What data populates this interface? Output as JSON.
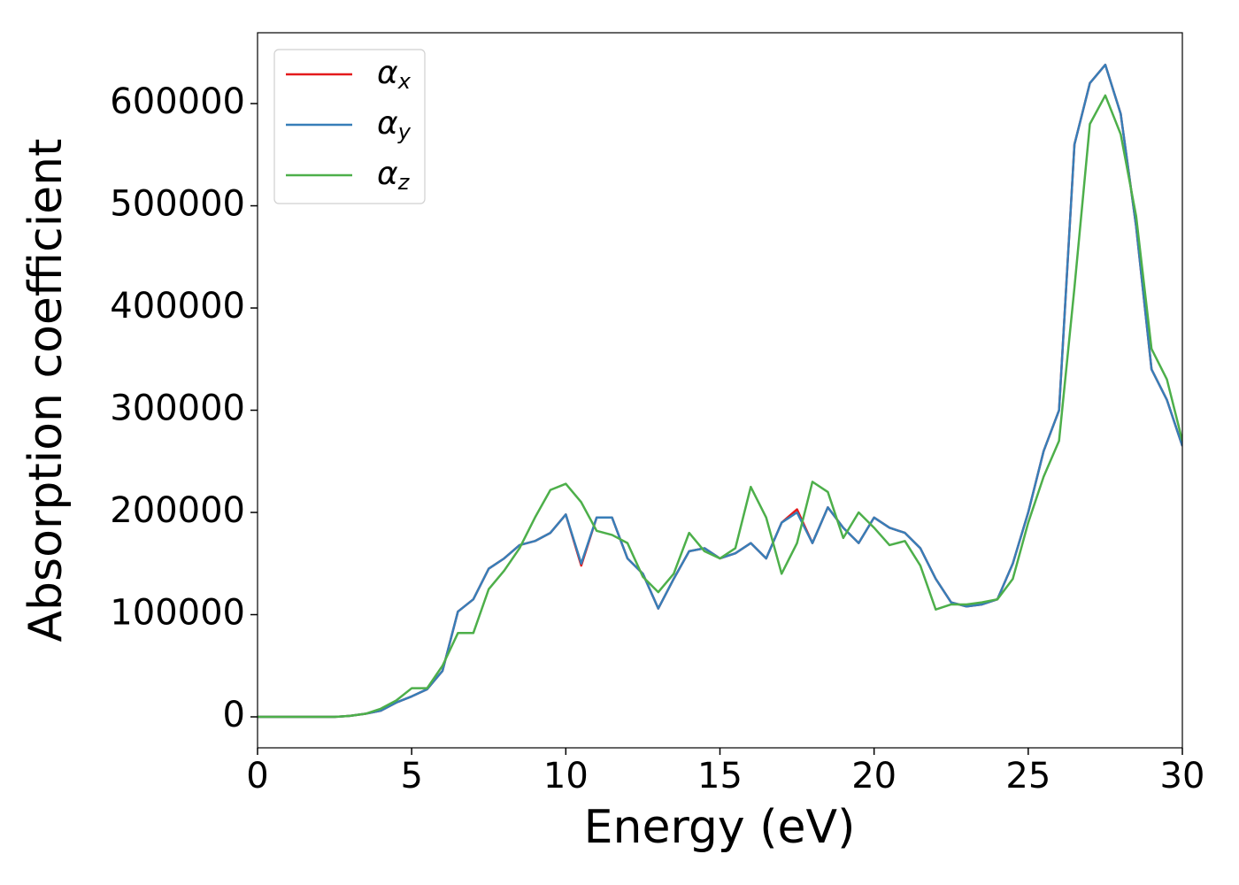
{
  "chart_data": {
    "type": "line",
    "xlabel": "Energy (eV)",
    "ylabel": "Absorption coefficient",
    "x": [
      0,
      0.5,
      1,
      1.5,
      2,
      2.5,
      3,
      3.5,
      4,
      4.5,
      5,
      5.5,
      6,
      6.5,
      7,
      7.5,
      8,
      8.5,
      9,
      9.5,
      10,
      10.5,
      11,
      11.5,
      12,
      12.5,
      13,
      13.5,
      14,
      14.5,
      15,
      15.5,
      16,
      16.5,
      17,
      17.5,
      18,
      18.5,
      19,
      19.5,
      20,
      20.5,
      21,
      21.5,
      22,
      22.5,
      23,
      23.5,
      24,
      24.5,
      25,
      25.5,
      26,
      26.5,
      27,
      27.5,
      28,
      28.5,
      29,
      29.5,
      30
    ],
    "series": [
      {
        "name": "αx",
        "color": "#e41a1c",
        "values": [
          0,
          0,
          0,
          0,
          0,
          0,
          1000,
          3000,
          6000,
          14000,
          20000,
          27000,
          45000,
          103000,
          115000,
          145000,
          155000,
          168000,
          172000,
          180000,
          198000,
          148000,
          195000,
          195000,
          155000,
          140000,
          106000,
          135000,
          162000,
          165000,
          155000,
          160000,
          170000,
          155000,
          190000,
          203000,
          170000,
          205000,
          185000,
          170000,
          195000,
          185000,
          180000,
          165000,
          135000,
          112000,
          108000,
          110000,
          115000,
          150000,
          200000,
          260000,
          300000,
          560000,
          620000,
          638000,
          590000,
          480000,
          340000,
          310000,
          265000
        ]
      },
      {
        "name": "αy",
        "color": "#377eb8",
        "values": [
          0,
          0,
          0,
          0,
          0,
          0,
          1000,
          3000,
          6000,
          14000,
          20000,
          27000,
          45000,
          103000,
          115000,
          145000,
          155000,
          168000,
          172000,
          180000,
          198000,
          150000,
          195000,
          195000,
          155000,
          140000,
          106000,
          135000,
          162000,
          165000,
          155000,
          160000,
          170000,
          155000,
          190000,
          200000,
          170000,
          205000,
          185000,
          170000,
          195000,
          185000,
          180000,
          165000,
          135000,
          112000,
          108000,
          110000,
          115000,
          150000,
          200000,
          260000,
          300000,
          560000,
          620000,
          638000,
          590000,
          480000,
          340000,
          310000,
          265000
        ]
      },
      {
        "name": "αz",
        "color": "#4daf4a",
        "values": [
          0,
          0,
          0,
          0,
          0,
          0,
          1000,
          3000,
          8000,
          16000,
          28000,
          28000,
          50000,
          82000,
          82000,
          125000,
          143000,
          165000,
          195000,
          222000,
          228000,
          210000,
          182000,
          178000,
          170000,
          137000,
          122000,
          140000,
          180000,
          162000,
          155000,
          165000,
          225000,
          195000,
          140000,
          170000,
          230000,
          220000,
          175000,
          200000,
          185000,
          168000,
          172000,
          148000,
          105000,
          110000,
          110000,
          112000,
          115000,
          135000,
          190000,
          235000,
          270000,
          420000,
          580000,
          608000,
          570000,
          490000,
          360000,
          330000,
          270000
        ]
      }
    ],
    "xlim": [
      0,
      30
    ],
    "xticks": [
      0,
      5,
      10,
      15,
      20,
      25,
      30
    ],
    "ylim": [
      -30300,
      669300
    ],
    "yticks": [
      0,
      100000,
      200000,
      300000,
      400000,
      500000,
      600000
    ],
    "legend": "upper left"
  }
}
